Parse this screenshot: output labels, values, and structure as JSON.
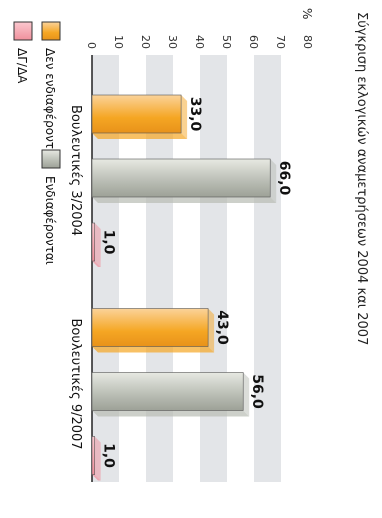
{
  "chart_data": {
    "type": "bar",
    "title": "Σύγκριση εκλογικών αναμετρήσεων 2004 και 2007",
    "ylabel": "%",
    "ylim": [
      0,
      80
    ],
    "yticks": [
      0,
      10,
      20,
      30,
      40,
      50,
      60,
      70,
      80
    ],
    "grid": true,
    "categories": [
      "Βουλευτικές 3/2004",
      "Βουλευτικές 9/2007"
    ],
    "series": [
      {
        "name": "Δεν ενδιαφέρονται",
        "values": [
          33.0,
          43.0
        ],
        "value_labels": [
          "33,0",
          "43,0"
        ],
        "color": "#f5a623"
      },
      {
        "name": "Ενδιαφέρονται",
        "values": [
          66.0,
          56.0
        ],
        "value_labels": [
          "66,0",
          "56,0"
        ],
        "color": "#b8bcb3"
      },
      {
        "name": "ΔΓ/ΔΑ",
        "values": [
          1.0,
          1.0
        ],
        "value_labels": [
          "1,0",
          "1,0"
        ],
        "color": "#f0909c"
      }
    ],
    "legend": "bottom",
    "orientation": "rotated"
  }
}
